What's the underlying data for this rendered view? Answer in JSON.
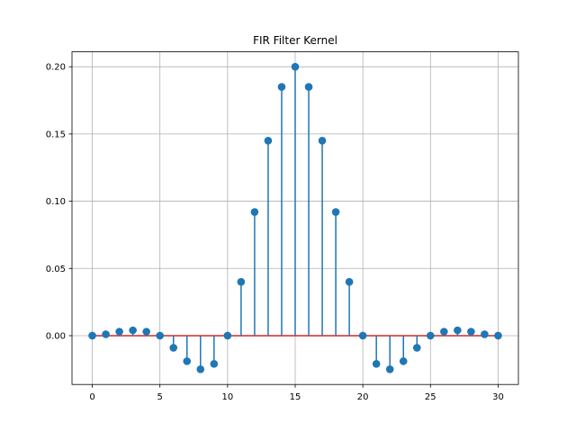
{
  "chart_data": {
    "type": "stem",
    "title": "FIR Filter Kernel",
    "xlabel": "",
    "ylabel": "",
    "xlim": [
      -1.5,
      31.5
    ],
    "ylim": [
      -0.0363,
      0.2111
    ],
    "xticks": [
      0,
      5,
      10,
      15,
      20,
      25,
      30
    ],
    "xtick_labels": [
      "0",
      "5",
      "10",
      "15",
      "20",
      "25",
      "30"
    ],
    "yticks": [
      0.0,
      0.05,
      0.1,
      0.15,
      0.2
    ],
    "ytick_labels": [
      "0.00",
      "0.05",
      "0.10",
      "0.15",
      "0.20"
    ],
    "grid": true,
    "baseline": 0,
    "x": [
      0,
      1,
      2,
      3,
      4,
      5,
      6,
      7,
      8,
      9,
      10,
      11,
      12,
      13,
      14,
      15,
      16,
      17,
      18,
      19,
      20,
      21,
      22,
      23,
      24,
      25,
      26,
      27,
      28,
      29,
      30
    ],
    "values": [
      0.0,
      0.001,
      0.003,
      0.004,
      0.003,
      0.0,
      -0.009,
      -0.019,
      -0.025,
      -0.021,
      0.0,
      0.04,
      0.092,
      0.145,
      0.185,
      0.2,
      0.185,
      0.145,
      0.092,
      0.04,
      0.0,
      -0.021,
      -0.025,
      -0.019,
      -0.009,
      0.0,
      0.003,
      0.004,
      0.003,
      0.001,
      0.0
    ],
    "colors": {
      "stem": "#1f77b4",
      "marker": "#1f77b4",
      "baseline": "#d62728",
      "grid": "#b0b0b0",
      "axis": "#000000"
    }
  }
}
